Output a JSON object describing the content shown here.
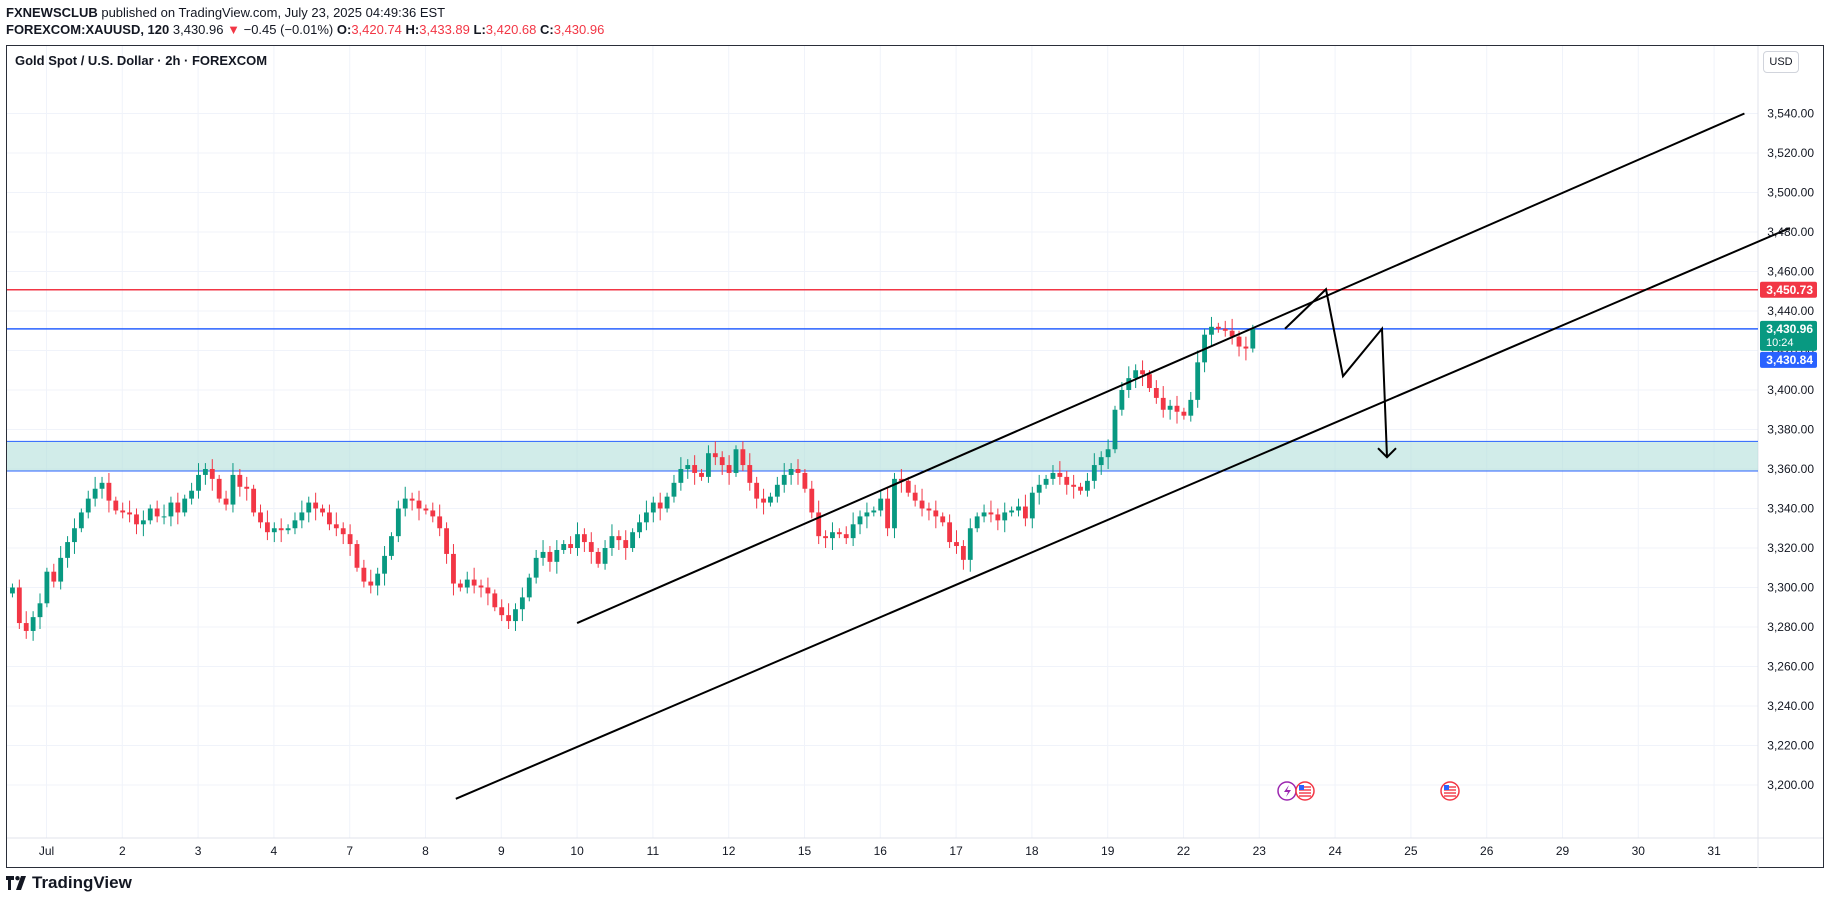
{
  "header": {
    "publisher": "FXNEWSCLUB",
    "published_text": "published on TradingView.com, July 23, 2025 04:49:36 EST",
    "symbol": "FOREXCOM:XAUUSD, 120",
    "last": "3,430.96",
    "change_arrow": "▼",
    "change": "−0.45 (−0.01%)",
    "o_label": "O:",
    "o_value": "3,420.74",
    "h_label": "H:",
    "h_value": "3,433.89",
    "l_label": "L:",
    "l_value": "3,420.68",
    "c_label": "C:",
    "c_value": "3,430.96"
  },
  "chart_title": "Gold Spot / U.S. Dollar · 2h · FOREXCOM",
  "currency_button": "USD",
  "footer_brand": "TradingView",
  "colors": {
    "up": "#089981",
    "down": "#f23645",
    "resistance": "#f23645",
    "current_line": "#2962ff",
    "zone_fill": "#b2dfdb",
    "zone_border": "#2962ff"
  },
  "chart_data": {
    "type": "candlestick",
    "title": "Gold Spot / U.S. Dollar · 2h · FOREXCOM",
    "ylim": [
      3190,
      3565
    ],
    "y_ticks": [
      3200,
      3220,
      3240,
      3260,
      3280,
      3300,
      3320,
      3340,
      3360,
      3380,
      3400,
      3420,
      3440,
      3460,
      3480,
      3500,
      3520,
      3540
    ],
    "y_tick_labels": [
      "3,200.00",
      "3,220.00",
      "3,240.00",
      "3,260.00",
      "3,280.00",
      "3,300.00",
      "3,320.00",
      "3,340.00",
      "3,360.00",
      "3,380.00",
      "3,400.00",
      "3,420.00",
      "3,440.00",
      "3,460.00",
      "3,480.00",
      "3,500.00",
      "3,520.00",
      "3,540.00"
    ],
    "x_ticks": [
      "Jul",
      "2",
      "3",
      "4",
      "7",
      "8",
      "9",
      "10",
      "11",
      "12",
      "15",
      "16",
      "17",
      "18",
      "19",
      "22",
      "23",
      "24",
      "25",
      "26",
      "29",
      "30",
      "31"
    ],
    "x_tick_index": [
      0,
      1,
      2,
      3,
      4,
      5,
      6,
      7,
      8,
      9,
      10,
      11,
      12,
      13,
      14,
      15,
      16,
      17,
      18,
      19,
      20,
      21,
      22
    ],
    "bars_per_day": 11,
    "series": [
      {
        "name": "XAUUSD 2h close",
        "values": [
          3300,
          3282,
          3278,
          3285,
          3292,
          3308,
          3303,
          3315,
          3323,
          3330,
          3338,
          3345,
          3350,
          3353,
          3344,
          3339,
          3338,
          3337,
          3332,
          3334,
          3340,
          3336,
          3336,
          3343,
          3338,
          3345,
          3349,
          3357,
          3360,
          3355,
          3345,
          3342,
          3357,
          3351,
          3350,
          3338,
          3333,
          3328,
          3330,
          3329,
          3330,
          3334,
          3338,
          3343,
          3340,
          3338,
          3332,
          3330,
          3327,
          3322,
          3310,
          3303,
          3301,
          3307,
          3316,
          3326,
          3340,
          3345,
          3344,
          3340,
          3339,
          3336,
          3330,
          3317,
          3302,
          3300,
          3304,
          3301,
          3300,
          3297,
          3290,
          3286,
          3283,
          3289,
          3295,
          3305,
          3315,
          3318,
          3313,
          3319,
          3322,
          3320,
          3327,
          3323,
          3318,
          3312,
          3320,
          3326,
          3324,
          3320,
          3328,
          3333,
          3338,
          3343,
          3340,
          3346,
          3353,
          3360,
          3362,
          3358,
          3356,
          3368,
          3366,
          3362,
          3358,
          3370,
          3362,
          3353,
          3345,
          3343,
          3346,
          3352,
          3357,
          3360,
          3358,
          3350,
          3338,
          3326,
          3325,
          3328,
          3327,
          3325,
          3332,
          3336,
          3338,
          3339,
          3345,
          3330,
          3355,
          3354,
          3348,
          3344,
          3340,
          3339,
          3336,
          3333,
          3323,
          3321,
          3314,
          3330,
          3336,
          3338,
          3337,
          3334,
          3338,
          3339,
          3341,
          3335,
          3348,
          3352,
          3355,
          3358,
          3356,
          3352,
          3351,
          3349,
          3354,
          3362,
          3366,
          3370,
          3390,
          3400,
          3406,
          3410,
          3408,
          3401,
          3396,
          3390,
          3392,
          3389,
          3387,
          3395,
          3414,
          3428,
          3432,
          3431,
          3430,
          3427,
          3422,
          3421,
          3431
        ]
      },
      {
        "name": "Projected path",
        "points_price": [
          3431,
          3451,
          3407,
          3431,
          3366
        ]
      }
    ],
    "annotations": {
      "resistance_level": 3450.73,
      "resistance_label": "3,450.73",
      "current_price": 3430.96,
      "current_label": "3,430.96",
      "countdown_label": "10:24",
      "bid_label": "3,430.84",
      "support_zone": [
        3359,
        3374
      ],
      "channel_upper": {
        "from": [
          7,
          3282
        ],
        "to": [
          22.4,
          3540
        ]
      },
      "channel_lower": {
        "from": [
          5.4,
          3193
        ],
        "to": [
          23.0,
          3482
        ]
      }
    }
  }
}
